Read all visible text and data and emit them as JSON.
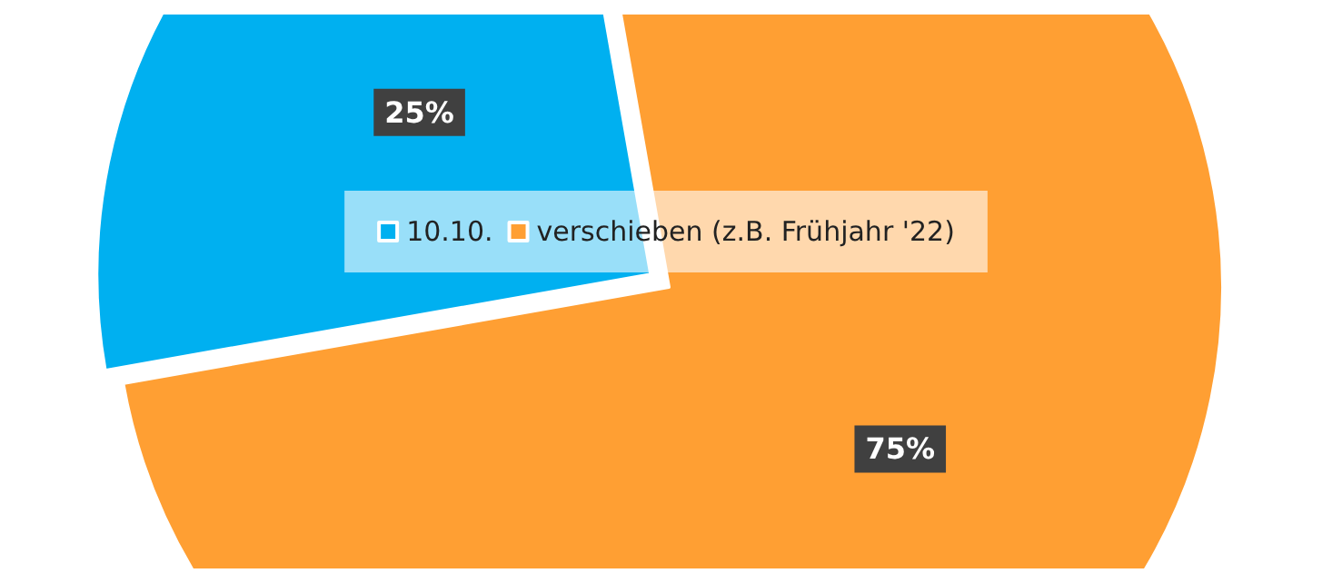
{
  "chart_data": {
    "type": "pie",
    "categories": [
      "10.10.",
      "verschieben (z.B. Frühjahr '22)"
    ],
    "values": [
      25,
      75
    ],
    "colors": [
      "#00b0f0",
      "#ff9f33"
    ],
    "value_labels": [
      "25%",
      "75%"
    ],
    "legend": "center"
  }
}
